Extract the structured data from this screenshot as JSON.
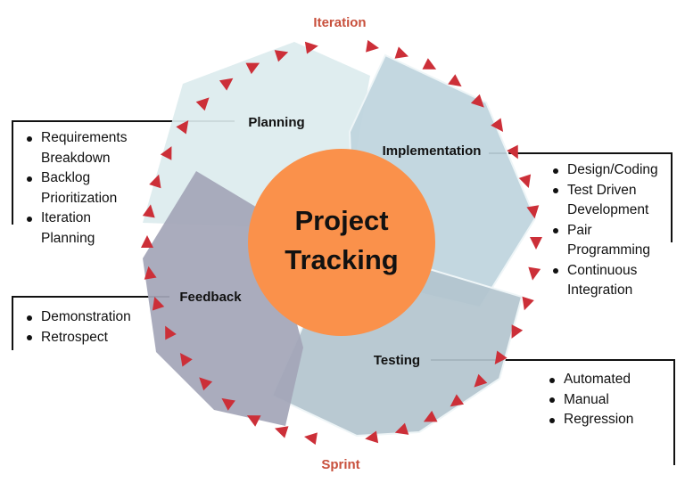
{
  "diagram": {
    "center": {
      "line1": "Project",
      "line2": "Tracking"
    },
    "top_label": "Iteration",
    "bottom_label": "Sprint",
    "sections": {
      "planning": {
        "title": "Planning",
        "items": [
          [
            "Requirements",
            "Breakdown"
          ],
          [
            "Backlog",
            "Prioritization"
          ],
          [
            "Iteration",
            "Planning"
          ]
        ]
      },
      "implementation": {
        "title": "Implementation",
        "items": [
          [
            "Design/Coding"
          ],
          [
            "Test Driven",
            "Development"
          ],
          [
            "Pair",
            "Programming"
          ],
          [
            "Continuous",
            "Integration"
          ]
        ]
      },
      "feedback": {
        "title": "Feedback",
        "items": [
          [
            "Demonstration"
          ],
          [
            "Retrospect"
          ]
        ]
      },
      "testing": {
        "title": "Testing",
        "items": [
          [
            "Automated"
          ],
          [
            "Manual"
          ],
          [
            "Regression"
          ]
        ]
      }
    },
    "colors": {
      "center_fill": "#FA914B",
      "arrow_fill": "#CC2F38",
      "cycle_label": "#C8503C",
      "planning_fill": "#DCEBEE",
      "implementation_fill": "#BED4DD",
      "feedback_fill": "#A4A6B8",
      "testing_fill": "#B3C4CE"
    }
  }
}
